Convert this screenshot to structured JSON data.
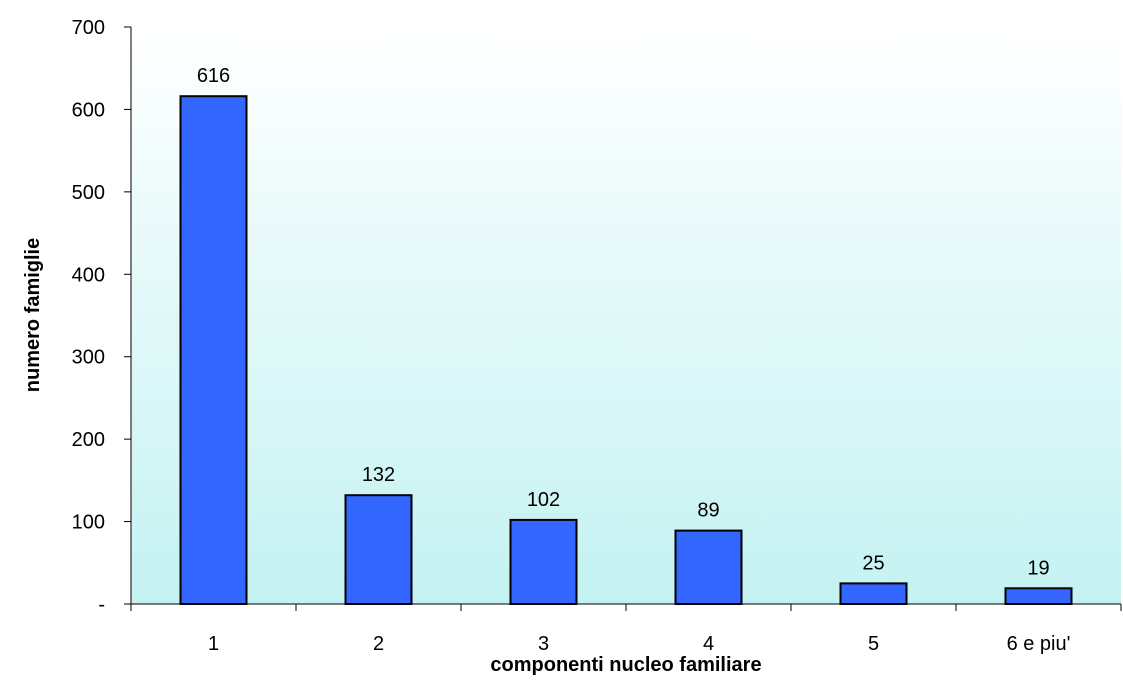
{
  "chart_data": {
    "type": "bar",
    "categories": [
      "1",
      "2",
      "3",
      "4",
      "5",
      "6 e piu'"
    ],
    "values": [
      616,
      132,
      102,
      89,
      25,
      19
    ],
    "data_labels": [
      "616",
      "132",
      "102",
      "89",
      "25",
      "19"
    ],
    "title": "",
    "xlabel": "componenti nucleo familiare",
    "ylabel": "numero famiglie",
    "ylim": [
      0,
      700
    ],
    "yticks": [
      0,
      100,
      200,
      300,
      400,
      500,
      600,
      700
    ],
    "ytick_labels": [
      "-",
      "100",
      "200",
      "300",
      "400",
      "500",
      "600",
      "700"
    ],
    "grid": false,
    "legend": "none",
    "colors": {
      "bar_fill": "#3366ff",
      "bar_stroke": "#000000",
      "plot_bg_top": "#ffffff",
      "plot_bg_bottom": "#c4f2f2"
    }
  }
}
